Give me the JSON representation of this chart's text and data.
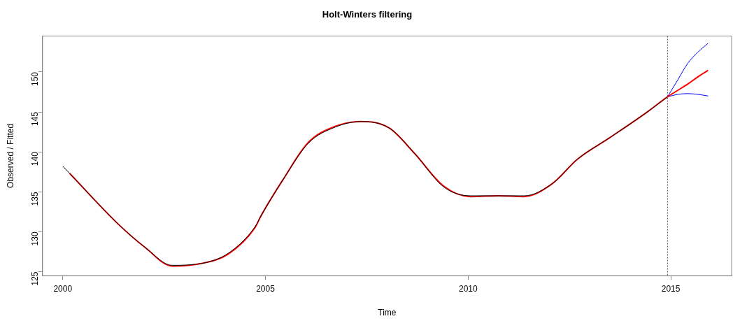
{
  "chart_data": {
    "type": "line",
    "title": "Holt-Winters filtering",
    "xlabel": "Time",
    "ylabel": "Observed / Fitted",
    "xlim": [
      1999.5,
      2016.5
    ],
    "ylim": [
      124.5,
      154.5
    ],
    "xticks": [
      2000,
      2005,
      2010,
      2015
    ],
    "yticks": [
      125,
      130,
      135,
      140,
      145,
      150
    ],
    "grid": false,
    "legend": false,
    "series": [
      {
        "color": "#000000",
        "x": [
          2000,
          2000.17,
          2001.38,
          2002.04,
          2002.7,
          2003.39,
          2004.08,
          2004.74,
          2004.88,
          2005.43,
          2006.06,
          2006.72,
          2007.36,
          2008.05,
          2008.68,
          2009.4,
          2010.06,
          2010.75,
          2011.38,
          2012.07,
          2012.7,
          2013.5,
          2014.42,
          2014.92
        ],
        "values": [
          138.2,
          137.3,
          130.9,
          128,
          125.8,
          126,
          127.3,
          130.6,
          131.9,
          136.5,
          141.1,
          143.1,
          143.8,
          143,
          139.8,
          135.6,
          134.5,
          null,
          134.5,
          136,
          139.1,
          141.8,
          145,
          146.9
        ]
      },
      {
        "color": "#ff0000",
        "x": [
          2000.17,
          2001.38,
          2002.04,
          2002.7,
          2003.39,
          2004.08,
          2004.74,
          2004.88,
          2005.43,
          2006.06,
          2006.72,
          2007.36,
          2008.05,
          2008.68,
          2009.4,
          2010.06,
          2010.75,
          2011.38,
          2012.07,
          2012.7,
          2013.5,
          2014.42,
          2014.92,
          2015.17,
          2015.42,
          2015.67,
          2015.92
        ],
        "values": [
          137.3,
          130.9,
          128,
          125.7,
          126,
          127.2,
          130.5,
          131.9,
          136.5,
          141.2,
          143.2,
          143.8,
          143,
          139.8,
          135.7,
          134.4,
          134.5,
          134.4,
          136,
          139.1,
          141.8,
          145,
          146.9,
          147.7,
          148.5,
          149.4,
          150.2
        ]
      },
      {
        "color": "#0000ff",
        "x": [
          2014.92,
          2015.17,
          2015.42,
          2015.67,
          2015.92
        ],
        "values": [
          146.9,
          149,
          151.1,
          152.5,
          153.6
        ]
      },
      {
        "color": "#0000ff",
        "x": [
          2014.92,
          2015.17,
          2015.42,
          2015.67,
          2015.92
        ],
        "values": [
          146.9,
          147.2,
          147.3,
          147.2,
          147
        ]
      }
    ],
    "ref_lines": [
      {
        "axis": "x",
        "value": 2014.92,
        "color": "#555555",
        "line_style": "dotted"
      }
    ]
  }
}
